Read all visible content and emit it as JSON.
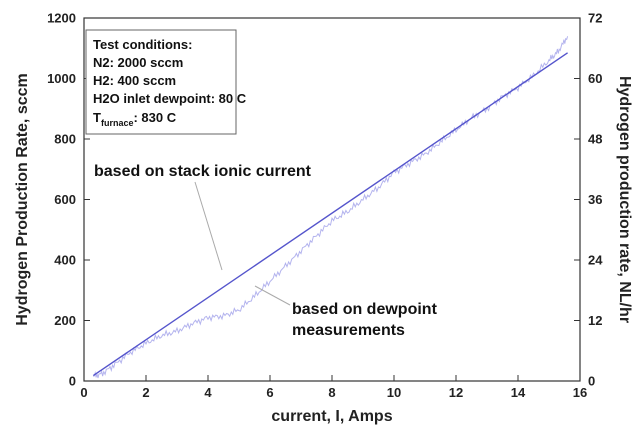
{
  "chart_data": {
    "type": "line",
    "xlabel": "current, I, Amps",
    "ylabel": "Hydrogen Production Rate, sccm",
    "y2label": "Hydrogen production rate, NL/hr",
    "xlim": [
      0,
      16
    ],
    "ylim": [
      0,
      1200
    ],
    "y2lim": [
      0,
      72
    ],
    "x_ticks": [
      "0",
      "2",
      "4",
      "6",
      "8",
      "10",
      "12",
      "14",
      "16"
    ],
    "y_ticks": [
      "0",
      "200",
      "400",
      "600",
      "800",
      "1000",
      "1200"
    ],
    "y2_ticks": [
      "0",
      "12",
      "24",
      "36",
      "48",
      "60",
      "72"
    ],
    "grid": false,
    "info_box": {
      "lines": [
        "Test conditions:",
        "N2: 2000 sccm",
        "H2:   400 sccm",
        "H2O inlet dewpoint: 80 C"
      ],
      "temp_symbol": "T",
      "temp_subscript": "furnace",
      "temp_value": ": 830 C"
    },
    "annotations": {
      "ionic": "based on stack ionic current",
      "dewpoint_line1": "based on dewpoint",
      "dewpoint_line2": "measurements"
    },
    "series": [
      {
        "key": "ionic",
        "color": "#5555cc",
        "x": [
          0.3,
          15.6
        ],
        "y": [
          18,
          1085
        ]
      },
      {
        "key": "dewpoint",
        "color": "#b4b4ee",
        "x": [
          0.3,
          0.6,
          1.0,
          1.5,
          2.0,
          2.5,
          3.0,
          3.5,
          4.0,
          4.5,
          5.0,
          5.5,
          6.0,
          6.5,
          7.0,
          7.5,
          8.0,
          8.5,
          9.0,
          9.5,
          10.0,
          10.5,
          11.0,
          11.5,
          12.0,
          12.5,
          13.0,
          13.5,
          14.0,
          14.5,
          15.0,
          15.3,
          15.6
        ],
        "y": [
          15,
          25,
          55,
          95,
          125,
          150,
          165,
          190,
          210,
          215,
          235,
          280,
          330,
          380,
          430,
          480,
          530,
          560,
          600,
          640,
          690,
          720,
          750,
          790,
          830,
          870,
          900,
          940,
          970,
          1010,
          1060,
          1090,
          1140
        ]
      }
    ]
  }
}
